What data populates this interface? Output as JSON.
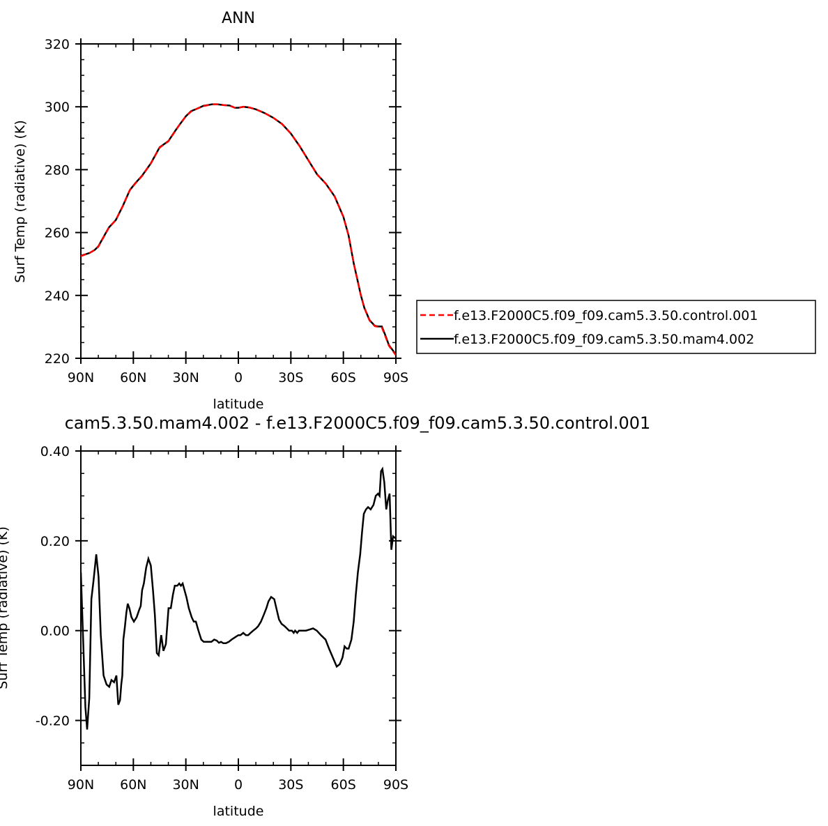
{
  "chart_data": [
    {
      "type": "line",
      "title": "ANN",
      "xlabel": "latitude",
      "ylabel": "Surf Temp (radiative) (K)",
      "xlim": [
        90,
        -90
      ],
      "ylim": [
        220,
        320
      ],
      "xticks": [
        {
          "value": 90,
          "label": "90N"
        },
        {
          "value": 60,
          "label": "60N"
        },
        {
          "value": 30,
          "label": "30N"
        },
        {
          "value": 0,
          "label": "0"
        },
        {
          "value": -30,
          "label": "30S"
        },
        {
          "value": -60,
          "label": "60S"
        },
        {
          "value": -90,
          "label": "90S"
        }
      ],
      "yticks": [
        "220",
        "240",
        "260",
        "280",
        "300",
        "320"
      ],
      "legend_position": "right",
      "series": [
        {
          "name": "f.e13.F2000C5.f09_f09.cam5.3.50.control.001",
          "color": "#ff0000",
          "dash": "dashed",
          "x": [
            90,
            85,
            82,
            80,
            77,
            74,
            70,
            66,
            62,
            59,
            55,
            50,
            45,
            40,
            37,
            34,
            30,
            27,
            24,
            20,
            15,
            12,
            8,
            5,
            2,
            0,
            -3,
            -6,
            -10,
            -15,
            -20,
            -25,
            -30,
            -35,
            -40,
            -45,
            -50,
            -55,
            -60,
            -63,
            -66,
            -68,
            -70,
            -72,
            -75,
            -78,
            -80,
            -82,
            -84,
            -86,
            -88,
            -90
          ],
          "y": [
            252.5,
            253.5,
            254.5,
            255.5,
            258.5,
            261.5,
            264,
            268.5,
            273.5,
            275.5,
            278,
            282,
            287,
            289,
            291.5,
            294,
            297,
            298.5,
            299.3,
            300.2,
            300.8,
            300.8,
            300.5,
            300.4,
            299.7,
            299.7,
            300,
            299.8,
            299.2,
            298,
            296.5,
            294.5,
            291.5,
            287.5,
            283,
            278.5,
            275.5,
            271.5,
            265,
            259,
            250,
            245,
            240,
            236,
            232,
            230.2,
            230,
            229.8,
            227,
            224,
            222.5,
            221
          ]
        },
        {
          "name": "f.e13.F2000C5.f09_f09.cam5.3.50.mam4.002",
          "color": "#000000",
          "dash": "solid",
          "x": [
            90,
            85,
            82,
            80,
            77,
            74,
            70,
            66,
            62,
            59,
            55,
            50,
            45,
            40,
            37,
            34,
            30,
            27,
            24,
            20,
            15,
            12,
            8,
            5,
            2,
            0,
            -3,
            -6,
            -10,
            -15,
            -20,
            -25,
            -30,
            -35,
            -40,
            -45,
            -50,
            -55,
            -60,
            -63,
            -66,
            -68,
            -70,
            -72,
            -75,
            -78,
            -80,
            -82,
            -84,
            -86,
            -88,
            -90
          ],
          "y": [
            252.6,
            253.5,
            254.5,
            255.6,
            258.6,
            261.6,
            264,
            268.5,
            273.5,
            275.6,
            278.1,
            282,
            287.1,
            289.1,
            291.6,
            294,
            297,
            298.6,
            299.3,
            300.3,
            300.8,
            300.8,
            300.5,
            300.4,
            299.7,
            299.7,
            300,
            299.8,
            299.2,
            298,
            296.5,
            294.5,
            291.5,
            287.5,
            283,
            278.5,
            275.5,
            271.5,
            265,
            259,
            250,
            245,
            240,
            236,
            232.1,
            230.3,
            230.1,
            230.1,
            227.3,
            224.2,
            222.7,
            221.2
          ]
        }
      ]
    },
    {
      "type": "line",
      "title": "cam5.3.50.mam4.002 - f.e13.F2000C5.f09_f09.cam5.3.50.control.001",
      "xlabel": "latitude",
      "ylabel": "Surf Temp (radiative) (K)",
      "xlim": [
        90,
        -90
      ],
      "ylim": [
        -0.3,
        0.4
      ],
      "xticks": [
        {
          "value": 90,
          "label": "90N"
        },
        {
          "value": 60,
          "label": "60N"
        },
        {
          "value": 30,
          "label": "30N"
        },
        {
          "value": 0,
          "label": "0"
        },
        {
          "value": -30,
          "label": "30S"
        },
        {
          "value": -60,
          "label": "60S"
        },
        {
          "value": -90,
          "label": "90S"
        }
      ],
      "yticks": [
        "-0.20",
        "0.00",
        "0.20",
        "0.40"
      ],
      "ytick_values": [
        -0.2,
        0,
        0.2,
        0.4
      ],
      "series": [
        {
          "color": "#000000",
          "x": [
            90,
            88.6,
            87.4,
            86.4,
            85.2,
            84,
            82.8,
            81.2,
            79.9,
            78.6,
            77,
            75.3,
            73.8,
            72.5,
            71,
            69.7,
            68.6,
            67.6,
            66.9,
            66.3,
            65.7,
            64.8,
            64,
            63.2,
            62.3,
            61.1,
            59.7,
            58.1,
            56.8,
            55.8,
            55,
            54,
            52.7,
            51.4,
            50,
            48.8,
            47.7,
            46.6,
            45.5,
            44.1,
            42.8,
            41.4,
            39.9,
            38.6,
            37.4,
            36.3,
            34.9,
            33.8,
            32.8,
            31.8,
            30.8,
            29.7,
            28.3,
            26.7,
            25.5,
            24.3,
            22.8,
            21.2,
            19.8,
            18.3,
            16.8,
            15.4,
            13.8,
            12.4,
            11.1,
            9.9,
            8.6,
            7.1,
            5.5,
            3.9,
            2,
            0,
            -1.2,
            -2.8,
            -4.3,
            -5.6,
            -7,
            -8.5,
            -10.1,
            -11.3,
            -12.9,
            -14.5,
            -16,
            -17.2,
            -18.7,
            -20.5,
            -21.7,
            -23.2,
            -24.7,
            -26.4,
            -27.7,
            -29,
            -30.6,
            -31.6,
            -32.4,
            -33.6,
            -34.6,
            -35.6,
            -37,
            -38.6,
            -40.3,
            -42.7,
            -44.8,
            -47.2,
            -49.8,
            -51.8,
            -54,
            -56.2,
            -57.9,
            -59.5,
            -60.7,
            -61.9,
            -63,
            -64.6,
            -65.9,
            -67.1,
            -68.3,
            -69.6,
            -70.7,
            -71.7,
            -72.9,
            -74.1,
            -75.6,
            -77.2,
            -78.5,
            -79.8,
            -80.7,
            -81.5,
            -82.3,
            -83.4,
            -84.5,
            -85.4,
            -86.4,
            -87.4,
            -88.4,
            -90
          ],
          "y": [
            0.13,
            -0.03,
            -0.17,
            -0.22,
            -0.15,
            0.07,
            0.11,
            0.17,
            0.12,
            -0.01,
            -0.1,
            -0.12,
            -0.125,
            -0.11,
            -0.115,
            -0.1,
            -0.165,
            -0.155,
            -0.12,
            -0.1,
            -0.02,
            0.01,
            0.04,
            0.06,
            0.05,
            0.03,
            0.02,
            0.03,
            0.045,
            0.055,
            0.09,
            0.105,
            0.14,
            0.16,
            0.145,
            0.09,
            0.035,
            -0.05,
            -0.055,
            -0.01,
            -0.045,
            -0.03,
            0.05,
            0.05,
            0.08,
            0.1,
            0.1,
            0.105,
            0.1,
            0.105,
            0.09,
            0.075,
            0.05,
            0.03,
            0.02,
            0.02,
            0.0,
            -0.02,
            -0.025,
            -0.025,
            -0.025,
            -0.025,
            -0.02,
            -0.022,
            -0.027,
            -0.025,
            -0.028,
            -0.028,
            -0.025,
            -0.02,
            -0.015,
            -0.01,
            -0.01,
            -0.005,
            -0.01,
            -0.01,
            -0.005,
            0.0,
            0.005,
            0.01,
            0.02,
            0.035,
            0.05,
            0.065,
            0.075,
            0.07,
            0.05,
            0.025,
            0.015,
            0.01,
            0.005,
            0.0,
            0.0,
            -0.005,
            0.0,
            -0.005,
            0.0,
            0.0,
            0.0,
            0.0,
            0.002,
            0.005,
            0.0,
            -0.01,
            -0.02,
            -0.04,
            -0.06,
            -0.08,
            -0.075,
            -0.06,
            -0.035,
            -0.04,
            -0.04,
            -0.02,
            0.02,
            0.08,
            0.13,
            0.17,
            0.22,
            0.26,
            0.27,
            0.275,
            0.27,
            0.28,
            0.3,
            0.305,
            0.3,
            0.355,
            0.36,
            0.33,
            0.27,
            0.29,
            0.305,
            0.18,
            0.21,
            0.205
          ]
        }
      ]
    }
  ]
}
